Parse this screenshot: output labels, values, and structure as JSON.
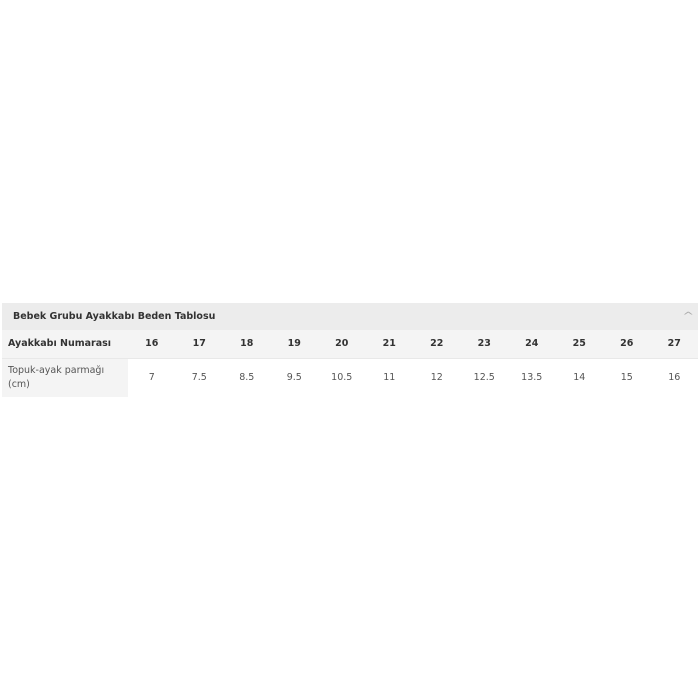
{
  "panel": {
    "title": "Bebek Grubu Ayakkabı Beden Tablosu",
    "collapse_icon": "chevron-up-icon"
  },
  "table": {
    "row_labels": [
      "Ayakkabı Numarası",
      "Topuk-ayak parmağı (cm)"
    ],
    "sizes": [
      "16",
      "17",
      "18",
      "19",
      "20",
      "21",
      "22",
      "23",
      "24",
      "25",
      "26",
      "27"
    ],
    "lengths_cm": [
      "7",
      "7.5",
      "8.5",
      "9.5",
      "10.5",
      "11",
      "12",
      "12.5",
      "13.5",
      "14",
      "15",
      "16"
    ]
  }
}
